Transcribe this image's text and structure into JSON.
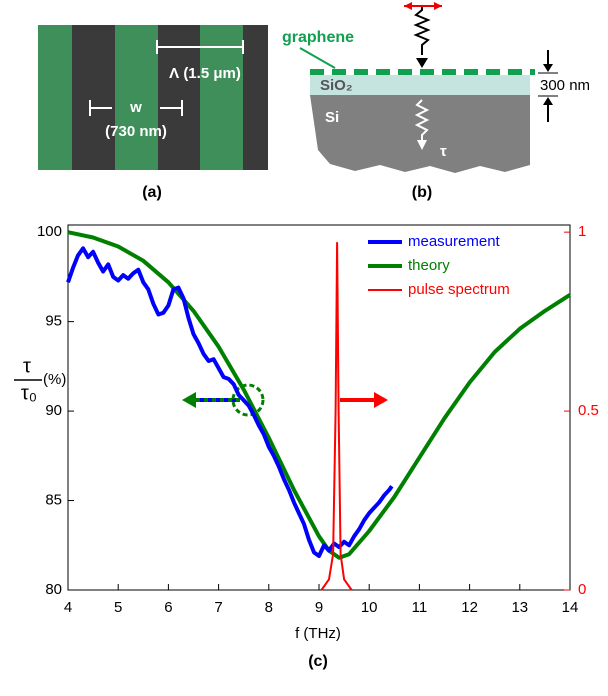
{
  "panel_a": {
    "label": "(a)",
    "period": "Λ (1.5 μm)",
    "width_symbol": "w",
    "width_value": "(730 nm)"
  },
  "panel_b": {
    "label": "(b)",
    "graphene": "graphene",
    "oxide": "SiO₂",
    "substrate": "Si",
    "tau": "τ",
    "thickness": "300 nm"
  },
  "chart_data": {
    "type": "line",
    "panel_label": "(c)",
    "xlabel": "f (THz)",
    "ylabel": {
      "numerator": "τ",
      "denominator": "τ₀",
      "unit": "(%)"
    },
    "xlim": [
      4,
      14
    ],
    "xticks": [
      4,
      5,
      6,
      7,
      8,
      9,
      10,
      11,
      12,
      13,
      14
    ],
    "ylim": [
      80,
      100.4
    ],
    "yticks": [
      80,
      85,
      90,
      95,
      100
    ],
    "y2lim": [
      0,
      1.02
    ],
    "y2ticks": [
      0,
      0.5,
      1
    ],
    "y2color": "#ff0000",
    "legend_position": "upper right",
    "series": [
      {
        "name": "measurement",
        "color": "#0000ff",
        "x": [
          4.0,
          4.1,
          4.2,
          4.3,
          4.4,
          4.5,
          4.6,
          4.7,
          4.8,
          4.9,
          5.0,
          5.1,
          5.2,
          5.3,
          5.4,
          5.5,
          5.6,
          5.7,
          5.8,
          5.9,
          6.0,
          6.1,
          6.2,
          6.3,
          6.4,
          6.5,
          6.6,
          6.7,
          6.8,
          6.9,
          7.0,
          7.1,
          7.2,
          7.3,
          7.4,
          7.5,
          7.6,
          7.7,
          7.8,
          7.9,
          8.0,
          8.1,
          8.2,
          8.3,
          8.4,
          8.5,
          8.6,
          8.7,
          8.8,
          8.9,
          9.0,
          9.1,
          9.2,
          9.3,
          9.4,
          9.5,
          9.6,
          9.7,
          9.8,
          9.9,
          10.0,
          10.1,
          10.2,
          10.3,
          10.4,
          10.45
        ],
        "values": [
          97.2,
          98.0,
          98.7,
          99.1,
          98.6,
          98.9,
          98.3,
          97.8,
          98.2,
          97.5,
          97.3,
          97.6,
          97.4,
          97.7,
          97.9,
          97.2,
          96.8,
          96.0,
          95.4,
          95.5,
          95.9,
          96.8,
          96.9,
          96.3,
          95.2,
          94.3,
          93.8,
          93.2,
          92.8,
          92.9,
          92.4,
          91.9,
          91.8,
          91.5,
          90.9,
          90.6,
          90.3,
          89.8,
          89.2,
          88.7,
          88.0,
          87.5,
          86.9,
          86.2,
          85.6,
          84.9,
          84.3,
          83.7,
          82.8,
          82.1,
          81.9,
          82.5,
          82.2,
          82.6,
          82.4,
          82.7,
          82.5,
          83.0,
          83.4,
          83.9,
          84.3,
          84.6,
          84.9,
          85.3,
          85.6,
          85.8
        ]
      },
      {
        "name": "theory",
        "color": "#008000",
        "x": [
          4,
          4.5,
          5,
          5.5,
          6,
          6.5,
          7,
          7.5,
          8,
          8.5,
          9,
          9.2,
          9.4,
          9.6,
          10,
          10.5,
          11,
          11.5,
          12,
          12.5,
          13,
          13.5,
          14
        ],
        "values": [
          100,
          99.7,
          99.2,
          98.4,
          97.2,
          95.6,
          93.6,
          91.2,
          88.5,
          85.6,
          83.0,
          82.2,
          81.8,
          82.0,
          83.3,
          85.2,
          87.4,
          89.6,
          91.6,
          93.3,
          94.6,
          95.6,
          96.5
        ]
      },
      {
        "name": "pulse spectrum",
        "color": "#ff0000",
        "axis": "y2",
        "x": [
          9.05,
          9.2,
          9.28,
          9.33,
          9.36,
          9.39,
          9.43,
          9.5,
          9.65
        ],
        "values": [
          0,
          0.03,
          0.1,
          0.5,
          0.97,
          0.5,
          0.1,
          0.03,
          0
        ]
      }
    ]
  }
}
